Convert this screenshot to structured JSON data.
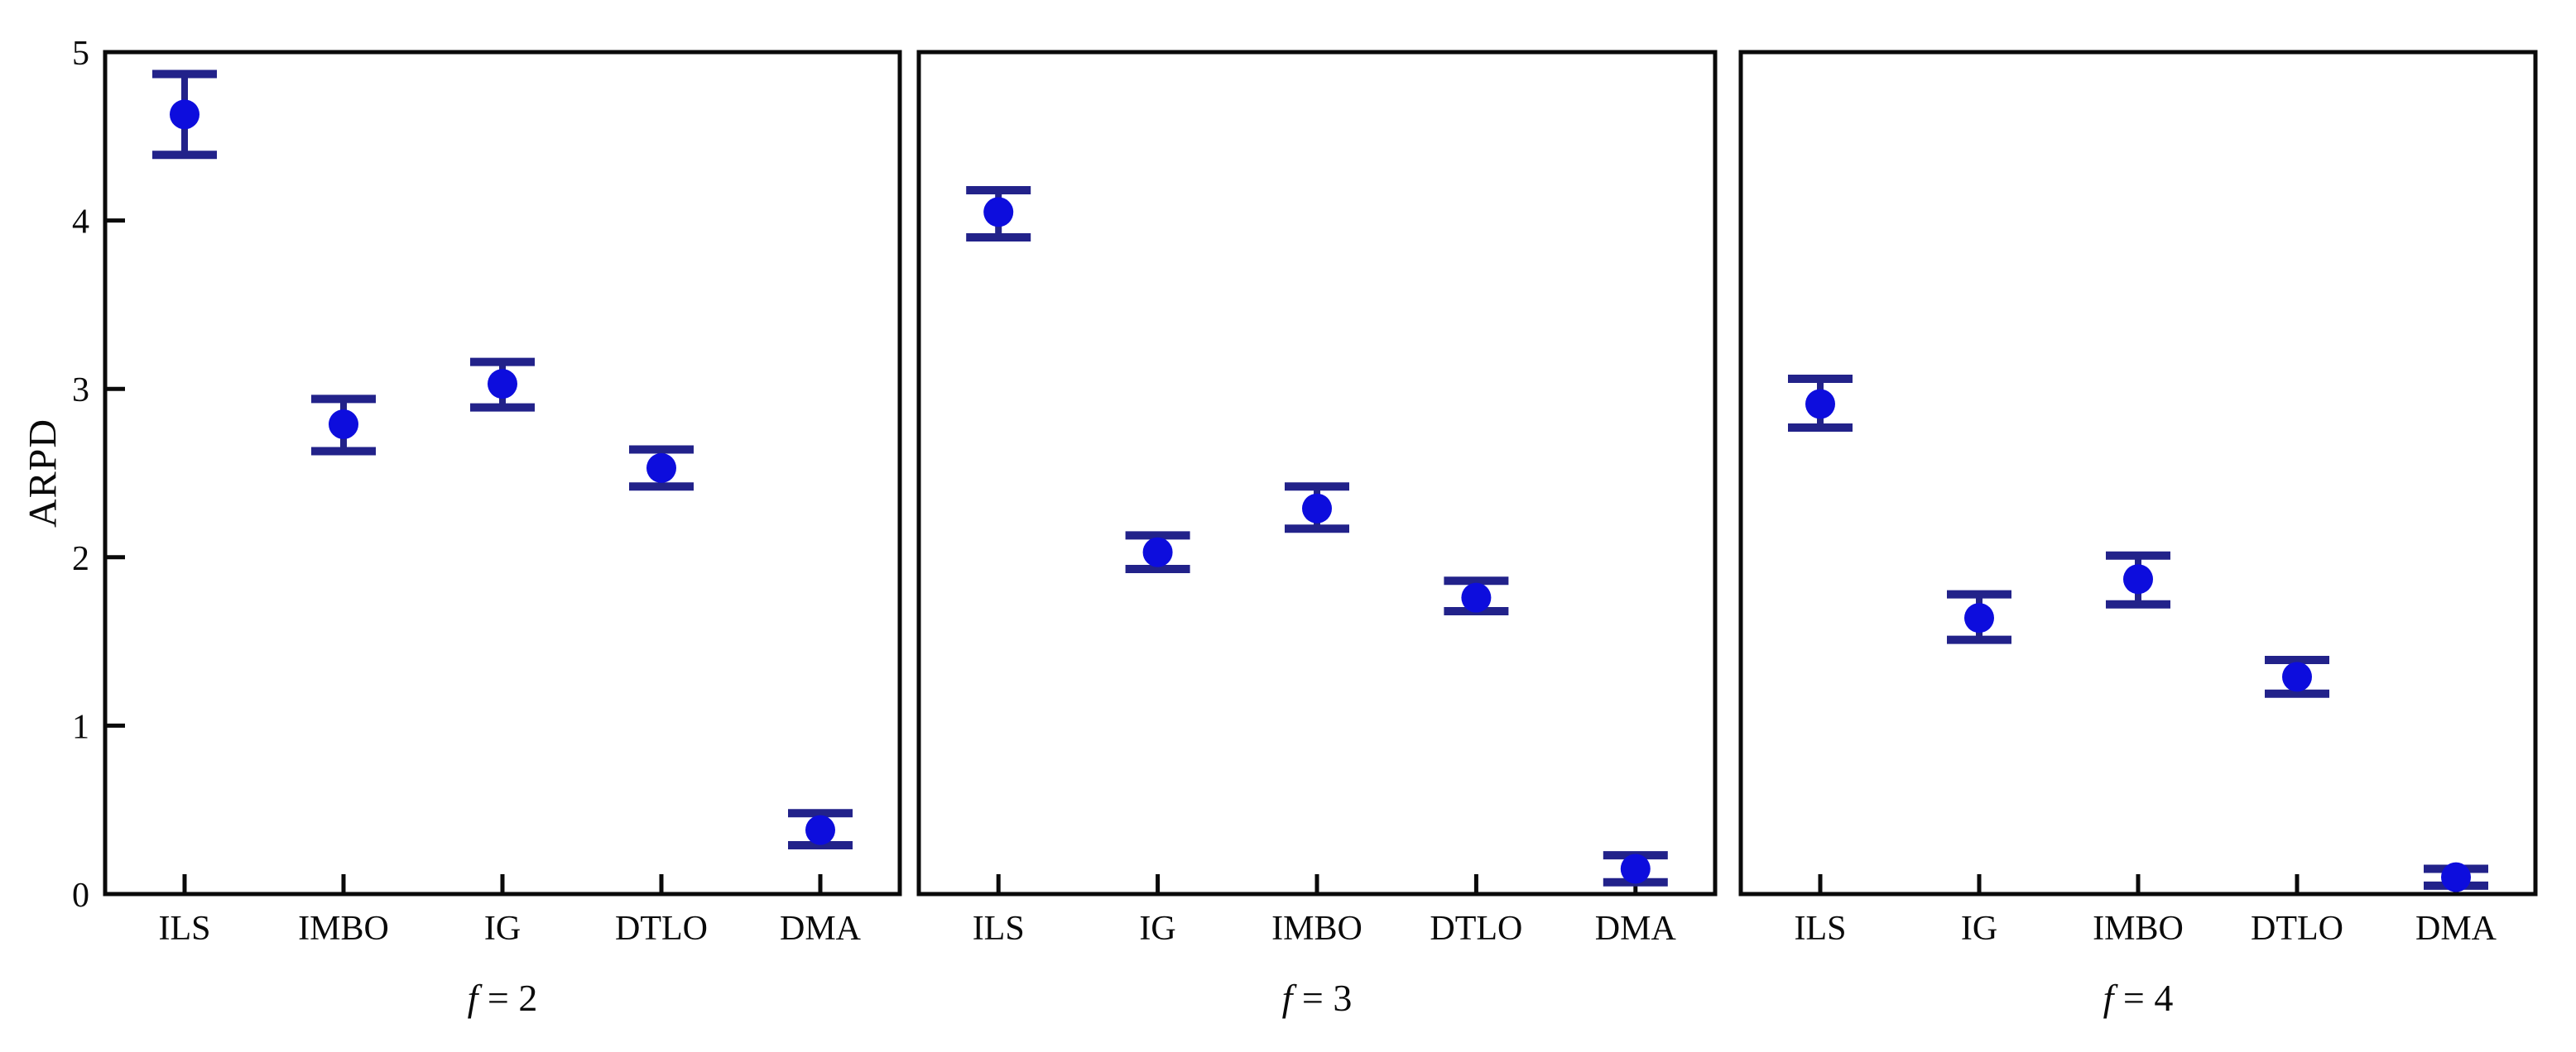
{
  "figure": {
    "ylabel": "ARPD",
    "ylim": [
      0,
      5
    ],
    "y_ticks": [
      0,
      1,
      2,
      3,
      4,
      5
    ],
    "y_tick_labels": [
      "0",
      "1",
      "2",
      "3",
      "4",
      "5"
    ],
    "background_color": "#ffffff",
    "axis_color": "#0a0a0a",
    "marker_color": "#0d0ddd",
    "errorbar_color": "#22228a",
    "legend": "none",
    "grid": "off"
  },
  "chart_data": [
    {
      "type": "scatter",
      "title": "f = 2",
      "xlabel": "f = 2",
      "ylabel": "ARPD",
      "ylim": [
        0,
        5
      ],
      "categories": [
        "ILS",
        "IMBO",
        "IG",
        "DTLO",
        "DMA"
      ],
      "values": [
        4.63,
        2.79,
        3.03,
        2.53,
        0.38
      ],
      "err_low": [
        4.39,
        2.63,
        2.89,
        2.42,
        0.29
      ],
      "err_high": [
        4.87,
        2.94,
        3.16,
        2.64,
        0.48
      ]
    },
    {
      "type": "scatter",
      "title": "f = 3",
      "xlabel": "f = 3",
      "ylabel": "ARPD",
      "ylim": [
        0,
        5
      ],
      "categories": [
        "ILS",
        "IG",
        "IMBO",
        "DTLO",
        "DMA"
      ],
      "values": [
        4.05,
        2.03,
        2.29,
        1.76,
        0.15
      ],
      "err_low": [
        3.9,
        1.93,
        2.17,
        1.68,
        0.07
      ],
      "err_high": [
        4.18,
        2.13,
        2.42,
        1.86,
        0.23
      ]
    },
    {
      "type": "scatter",
      "title": "f = 4",
      "xlabel": "f = 4",
      "ylabel": "ARPD",
      "ylim": [
        0,
        5
      ],
      "categories": [
        "ILS",
        "IG",
        "IMBO",
        "DTLO",
        "DMA"
      ],
      "values": [
        2.91,
        1.64,
        1.87,
        1.29,
        0.1
      ],
      "err_low": [
        2.77,
        1.51,
        1.72,
        1.19,
        0.05
      ],
      "err_high": [
        3.06,
        1.78,
        2.01,
        1.39,
        0.15
      ]
    }
  ]
}
